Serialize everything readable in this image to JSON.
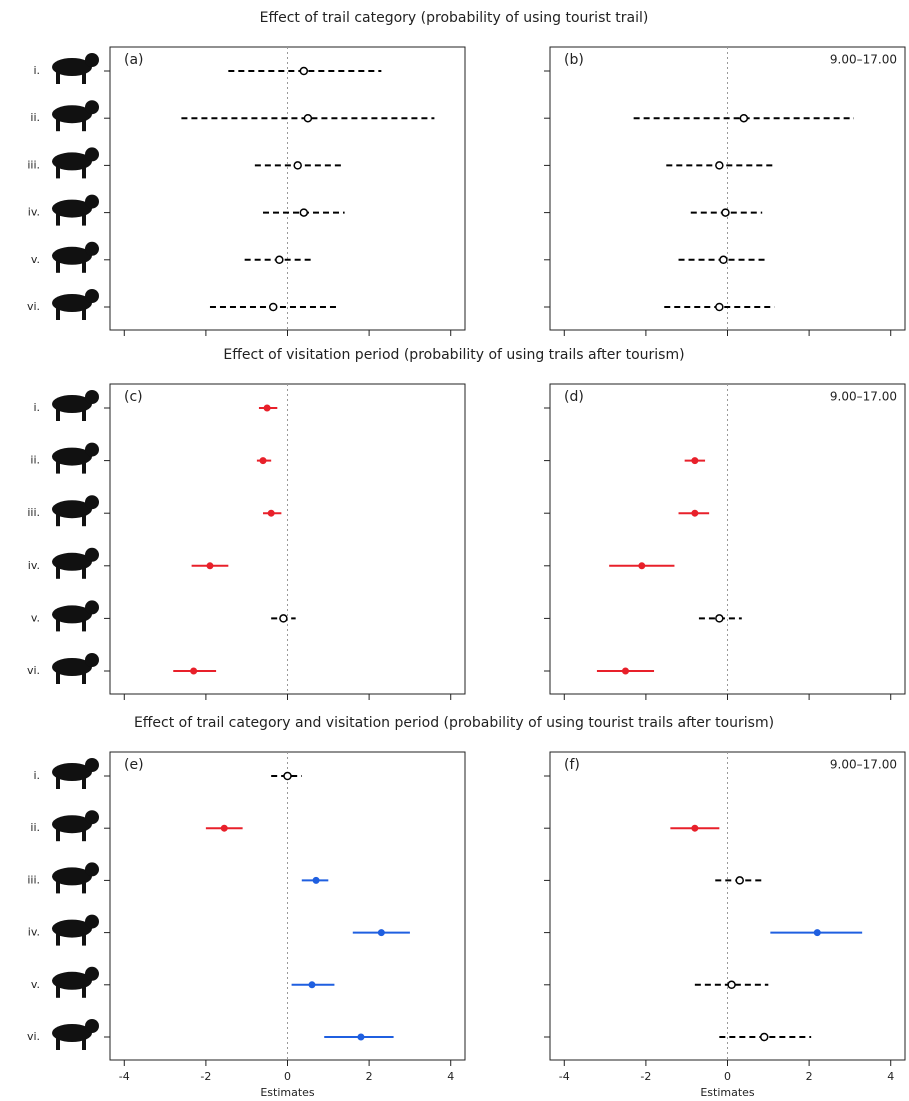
{
  "chart_data": [
    {
      "type": "forest",
      "title": "Effect of trail category (probability of using tourist trail)",
      "panel_label": "(a)",
      "categories": [
        "i.",
        "ii.",
        "iii.",
        "iv.",
        "v.",
        "vi."
      ],
      "values": [
        0.4,
        0.5,
        0.25,
        0.4,
        -0.2,
        -0.35
      ],
      "lower": [
        -1.45,
        -2.6,
        -0.8,
        -0.6,
        -1.05,
        -1.9
      ],
      "upper": [
        2.3,
        3.6,
        1.35,
        1.4,
        0.65,
        1.2
      ],
      "colors": [
        "#000000",
        "#000000",
        "#000000",
        "#000000",
        "#000000",
        "#000000"
      ],
      "xlim": [
        -4.35,
        4.35
      ],
      "xticks": [
        -4,
        -2,
        0,
        2,
        4
      ],
      "xtick_labels": false,
      "refline": 0
    },
    {
      "type": "forest",
      "panel_label": "(b)",
      "annotation": "9.00–17.00",
      "values": [
        null,
        0.4,
        -0.2,
        -0.05,
        -0.1,
        -0.2
      ],
      "lower": [
        null,
        -2.3,
        -1.5,
        -0.9,
        -1.2,
        -1.55
      ],
      "upper": [
        null,
        3.1,
        1.15,
        0.85,
        1.0,
        1.15
      ],
      "colors": [
        "#000000",
        "#000000",
        "#000000",
        "#000000",
        "#000000",
        "#000000"
      ],
      "xlim": [
        -4.35,
        4.35
      ],
      "xticks": [
        -4,
        -2,
        0,
        2,
        4
      ],
      "xtick_labels": false,
      "refline": 0
    },
    {
      "type": "forest",
      "title": "Effect of visitation period (probability of using trails after tourism)",
      "panel_label": "(c)",
      "categories": [
        "i.",
        "ii.",
        "iii.",
        "iv.",
        "v.",
        "vi."
      ],
      "values": [
        -0.5,
        -0.6,
        -0.4,
        -1.9,
        -0.1,
        -2.3
      ],
      "lower": [
        -0.7,
        -0.75,
        -0.6,
        -2.35,
        -0.4,
        -2.8
      ],
      "upper": [
        -0.25,
        -0.4,
        -0.15,
        -1.45,
        0.2,
        -1.75
      ],
      "colors": [
        "#e8202a",
        "#e8202a",
        "#e8202a",
        "#e8202a",
        "#000000",
        "#e8202a"
      ],
      "xlim": [
        -4.35,
        4.35
      ],
      "xticks": [
        -4,
        -2,
        0,
        2,
        4
      ],
      "xtick_labels": false,
      "refline": 0
    },
    {
      "type": "forest",
      "panel_label": "(d)",
      "annotation": "9.00–17.00",
      "values": [
        null,
        -0.8,
        -0.8,
        -2.1,
        -0.2,
        -2.5
      ],
      "lower": [
        null,
        -1.05,
        -1.2,
        -2.9,
        -0.7,
        -3.2
      ],
      "upper": [
        null,
        -0.55,
        -0.45,
        -1.3,
        0.35,
        -1.8
      ],
      "colors": [
        "#000000",
        "#e8202a",
        "#e8202a",
        "#e8202a",
        "#000000",
        "#e8202a"
      ],
      "xlim": [
        -4.35,
        4.35
      ],
      "xticks": [
        -4,
        -2,
        0,
        2,
        4
      ],
      "xtick_labels": false,
      "refline": 0
    },
    {
      "type": "forest",
      "title": "Effect of trail category and visitation period (probability of using tourist trails after tourism)",
      "panel_label": "(e)",
      "categories": [
        "i.",
        "ii.",
        "iii.",
        "iv.",
        "v.",
        "vi."
      ],
      "values": [
        0.0,
        -1.55,
        0.7,
        2.3,
        0.6,
        1.8
      ],
      "lower": [
        -0.4,
        -2.0,
        0.35,
        1.6,
        0.1,
        0.9
      ],
      "upper": [
        0.35,
        -1.1,
        1.0,
        3.0,
        1.15,
        2.6
      ],
      "colors": [
        "#000000",
        "#e8202a",
        "#1f5fe0",
        "#1f5fe0",
        "#1f5fe0",
        "#1f5fe0"
      ],
      "xlim": [
        -4.35,
        4.35
      ],
      "xticks": [
        -4,
        -2,
        0,
        2,
        4
      ],
      "xtick_labels": true,
      "xlabel": "Estimates",
      "refline": 0
    },
    {
      "type": "forest",
      "panel_label": "(f)",
      "annotation": "9.00–17.00",
      "values": [
        null,
        -0.8,
        0.3,
        2.2,
        0.1,
        0.9
      ],
      "lower": [
        null,
        -1.4,
        -0.3,
        1.05,
        -0.8,
        -0.2
      ],
      "upper": [
        null,
        -0.2,
        0.9,
        3.3,
        1.0,
        2.05
      ],
      "colors": [
        "#000000",
        "#e8202a",
        "#000000",
        "#1f5fe0",
        "#000000",
        "#000000"
      ],
      "xlim": [
        -4.35,
        4.35
      ],
      "xticks": [
        -4,
        -2,
        0,
        2,
        4
      ],
      "xtick_labels": true,
      "xlabel": "Estimates",
      "refline": 0
    }
  ]
}
